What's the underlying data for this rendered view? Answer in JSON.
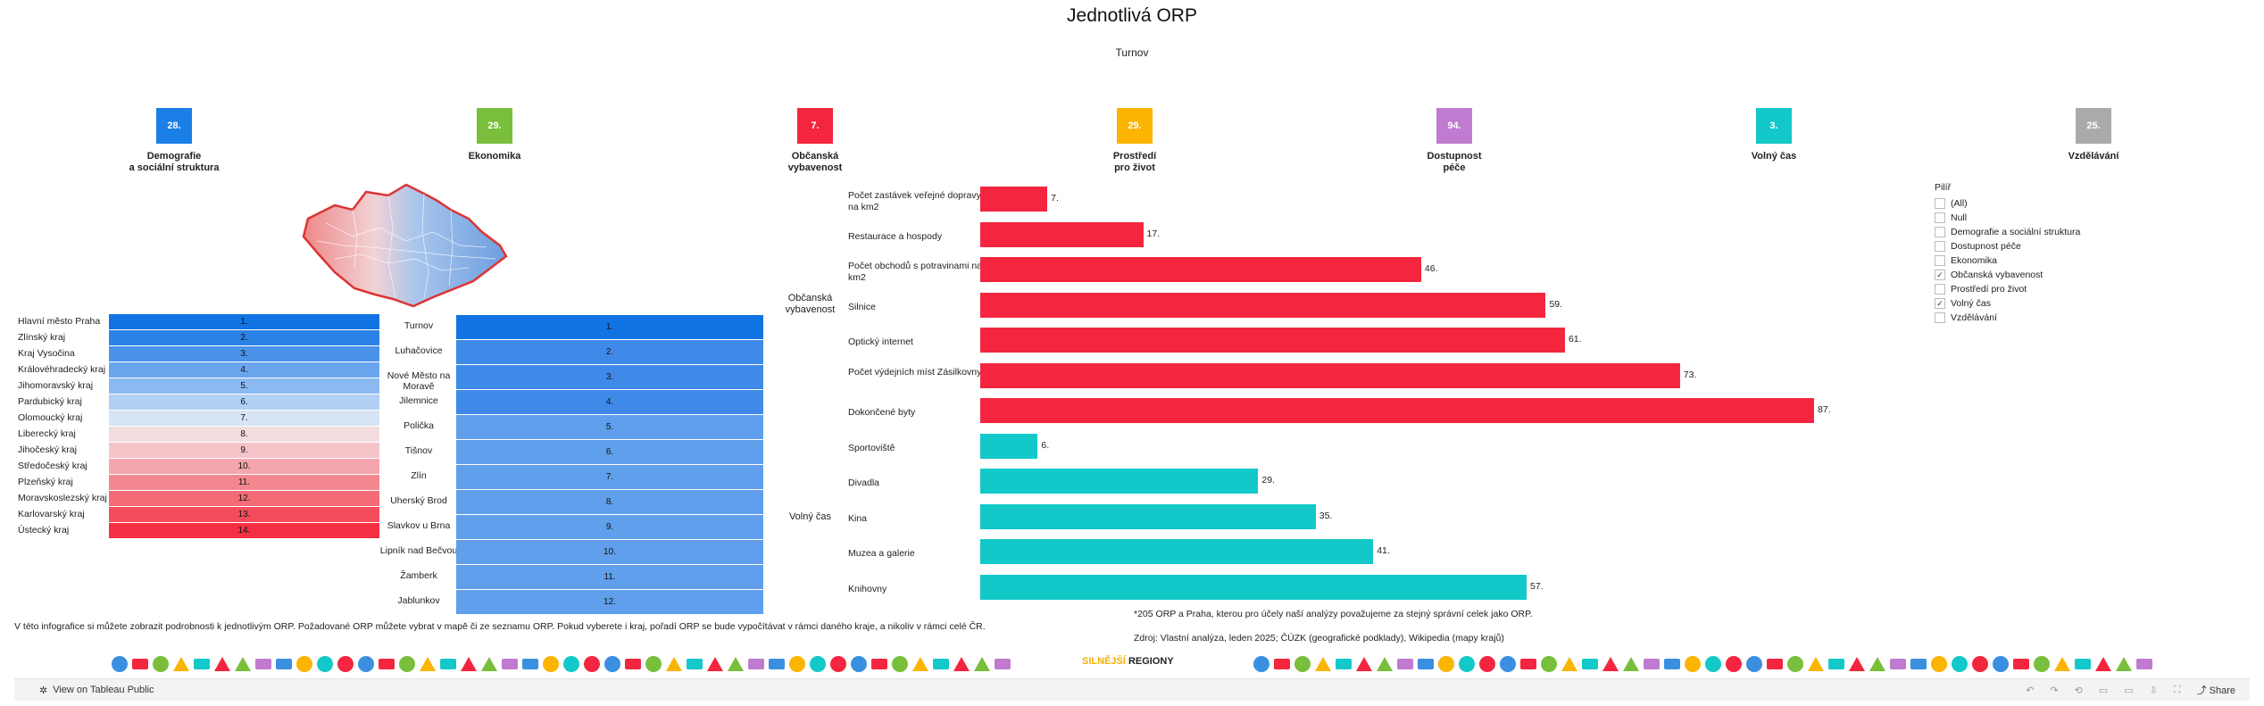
{
  "title": "Jednotlivá ORP",
  "subtitle": "Turnov",
  "categories": [
    {
      "label": "Demografie\na sociální struktura",
      "value": "28.",
      "color": "#1a7fe6"
    },
    {
      "label": "Ekonomika",
      "value": "29.",
      "color": "#79bf3b"
    },
    {
      "label": "Občanská\nvybavenost",
      "value": "7.",
      "color": "#f4263f"
    },
    {
      "label": "Prostředí\npro život",
      "value": "29.",
      "color": "#fbb400"
    },
    {
      "label": "Dostupnost\npéče",
      "value": "94.",
      "color": "#c07ad0"
    },
    {
      "label": "Volný čas",
      "value": "3.",
      "color": "#13c8c8"
    },
    {
      "label": "Vzdělávání",
      "value": "25.",
      "color": "#aaaaaa"
    }
  ],
  "kraje": [
    {
      "name": "Hlavní město Praha",
      "rank": "1."
    },
    {
      "name": "Zlínský kraj",
      "rank": "2."
    },
    {
      "name": "Kraj Vysočina",
      "rank": "3."
    },
    {
      "name": "Královéhradecký kraj",
      "rank": "4."
    },
    {
      "name": "Jihomoravský kraj",
      "rank": "5."
    },
    {
      "name": "Pardubický kraj",
      "rank": "6."
    },
    {
      "name": "Olomoucký kraj",
      "rank": "7."
    },
    {
      "name": "Liberecký kraj",
      "rank": "8."
    },
    {
      "name": "Jihočeský kraj",
      "rank": "9."
    },
    {
      "name": "Středočeský kraj",
      "rank": "10."
    },
    {
      "name": "Plzeňský kraj",
      "rank": "11."
    },
    {
      "name": "Moravskoslezský kraj",
      "rank": "12."
    },
    {
      "name": "Karlovarský kraj",
      "rank": "13."
    },
    {
      "name": "Ústecký kraj",
      "rank": "14."
    }
  ],
  "orp": [
    {
      "name": "Turnov",
      "rank": "1."
    },
    {
      "name": "Luhačovice",
      "rank": "2."
    },
    {
      "name": "Nové Město na Moravě",
      "rank": "3."
    },
    {
      "name": "Jilemnice",
      "rank": "4."
    },
    {
      "name": "Polička",
      "rank": "5."
    },
    {
      "name": "Tišnov",
      "rank": "6."
    },
    {
      "name": "Zlín",
      "rank": "7."
    },
    {
      "name": "Uherský Brod",
      "rank": "8."
    },
    {
      "name": "Slavkov u Brna",
      "rank": "9."
    },
    {
      "name": "Lipník nad Bečvou",
      "rank": "10."
    },
    {
      "name": "Žamberk",
      "rank": "11."
    },
    {
      "name": "Jablunkov",
      "rank": "12."
    }
  ],
  "chart_data": {
    "type": "bar",
    "orientation": "horizontal",
    "groups": [
      {
        "name": "Občanská vybavenost",
        "color": "#f4263f",
        "categories": [
          "Počet zastávek veřejné dopravy na km2",
          "Restaurace a hospody",
          "Počet obchodů s potravinami na km2",
          "Silnice",
          "Optický internet",
          "Počet výdejních míst Zásilkovny",
          "Dokončené byty"
        ],
        "values": [
          7,
          17,
          46,
          59,
          61,
          73,
          87
        ]
      },
      {
        "name": "Volný čas",
        "color": "#13c8c8",
        "categories": [
          "Sportoviště",
          "Divadla",
          "Kina",
          "Muzea a galerie",
          "Knihovny"
        ],
        "values": [
          6,
          29,
          35,
          41,
          57
        ]
      }
    ],
    "xlim": [
      0,
      95
    ]
  },
  "filter": {
    "title": "Pilíř",
    "items": [
      {
        "label": "(All)",
        "checked": false
      },
      {
        "label": "Null",
        "checked": false
      },
      {
        "label": "Demografie a sociální struktura",
        "checked": false
      },
      {
        "label": "Dostupnost péče",
        "checked": false
      },
      {
        "label": "Ekonomika",
        "checked": false
      },
      {
        "label": "Občanská vybavenost",
        "checked": true
      },
      {
        "label": "Prostředí pro život",
        "checked": false
      },
      {
        "label": "Volný čas",
        "checked": true
      },
      {
        "label": "Vzdělávání",
        "checked": false
      }
    ]
  },
  "notes": {
    "left": "V této infografice si můžete zobrazit podrobnosti k jednotlivým ORP. Požadované ORP můžete vybrat v mapě či ze seznamu ORP.  Pokud vyberete i kraj, pořadí ORP se bude vypočítávat v rámci daného kraje, a nikoliv v rámci celé ČR.",
    "footnote": "*205 ORP a Praha, kterou pro účely naší analýzy považujeme za stejný správní celek jako ORP.",
    "source": "Zdroj: Vlastní analýza, leden 2025; ČÚZK (geografické podklady), Wikipedia (mapy krajů)"
  },
  "brand": {
    "prefix": "SILNĚJŠÍ",
    "suffix": " REGIONY"
  },
  "footer": {
    "view_label": "View on Tableau Public",
    "share_label": "Share"
  }
}
